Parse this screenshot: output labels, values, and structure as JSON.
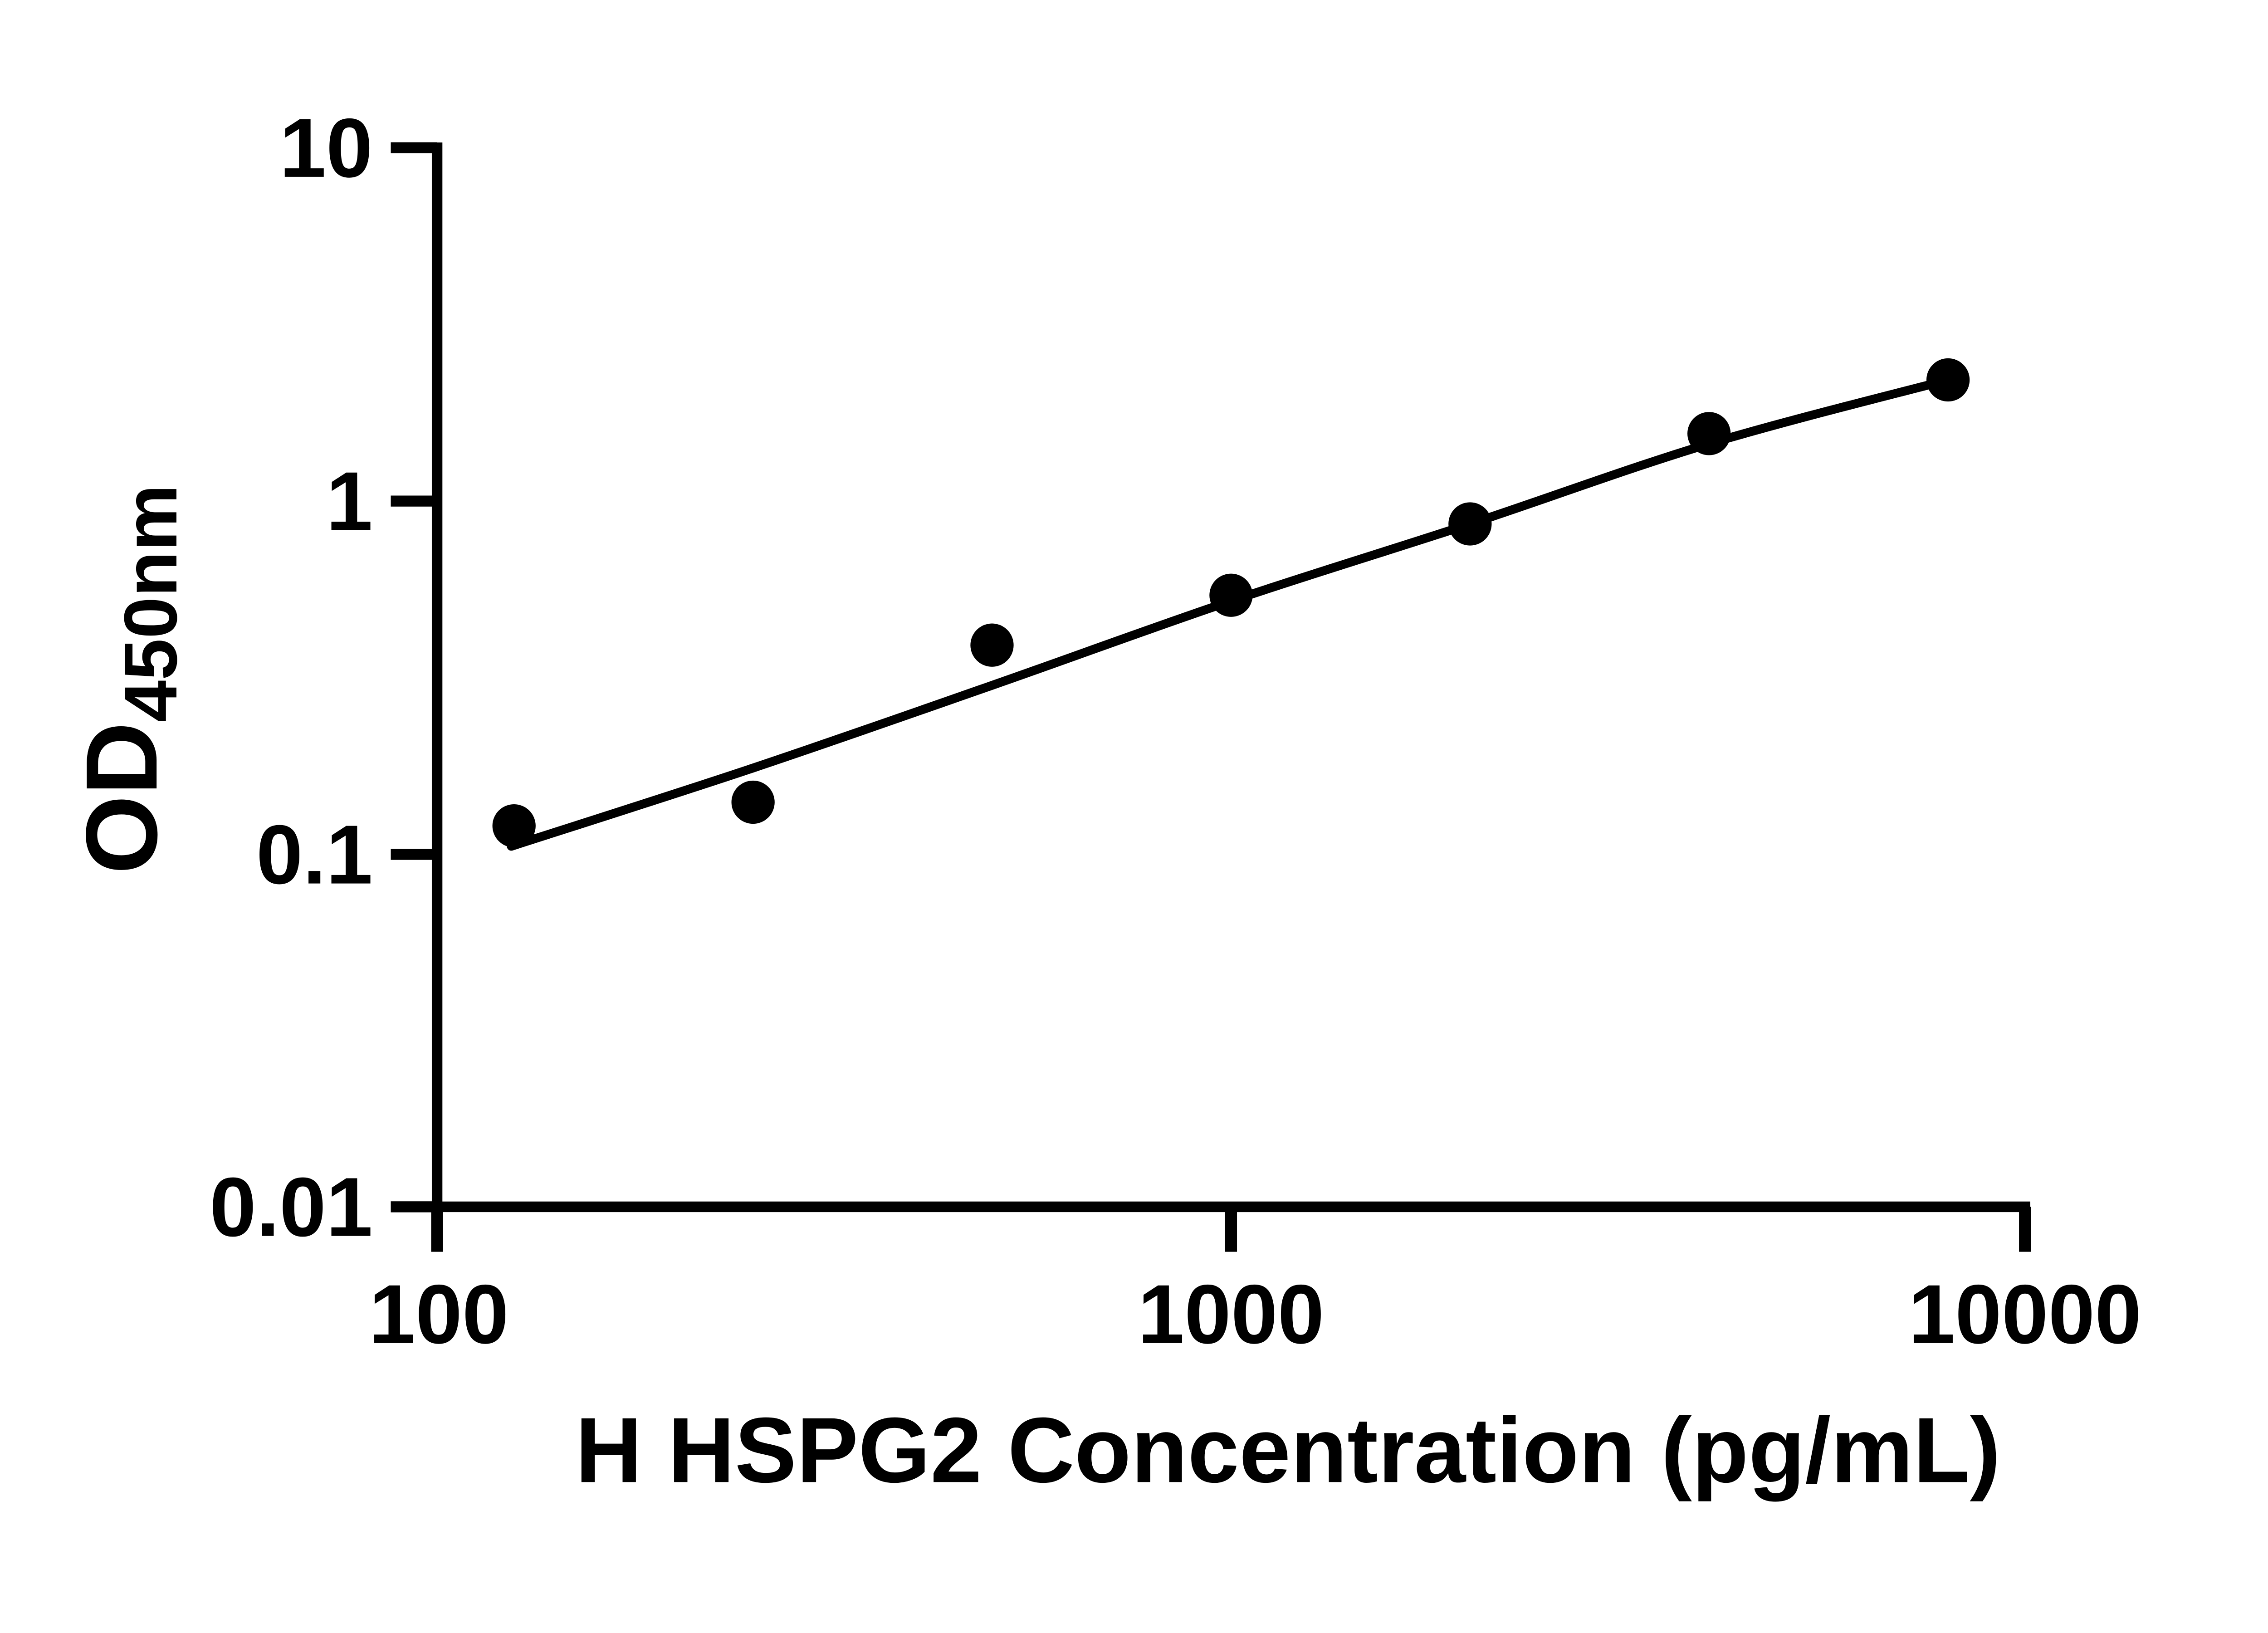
{
  "chart_data": {
    "type": "scatter",
    "subtype": "standard-curve-with-fit-line",
    "title": "",
    "xlabel": "H HSPG2 Concentration (pg/mL)",
    "ylabel": "OD450nm",
    "ylabel_main": "OD",
    "ylabel_sub": "450nm",
    "x_scale": "log10",
    "y_scale": "log10",
    "xlim": [
      100,
      10000
    ],
    "ylim": [
      0.01,
      10
    ],
    "x_ticks": [
      100,
      1000,
      10000
    ],
    "x_tick_labels": [
      "100",
      "1000",
      "10000"
    ],
    "y_ticks": [
      10,
      1,
      0.1,
      0.01
    ],
    "y_tick_labels": [
      "10",
      "1",
      "0.1",
      "0.01"
    ],
    "grid": false,
    "legend": false,
    "background_color": "#ffffff",
    "marker_color": "#000000",
    "line_color": "#000000",
    "categories": [
      125,
      250,
      500,
      1000,
      2000,
      4000,
      8000
    ],
    "series": [
      {
        "name": "OD450nm standard curve points",
        "values": [
          0.12,
          0.14,
          0.39,
          0.54,
          0.86,
          1.55,
          2.2
        ]
      }
    ],
    "points": [
      {
        "x": 125,
        "od": 0.12
      },
      {
        "x": 250,
        "od": 0.14
      },
      {
        "x": 500,
        "od": 0.39
      },
      {
        "x": 1000,
        "od": 0.54
      },
      {
        "x": 2000,
        "od": 0.86
      },
      {
        "x": 4000,
        "od": 1.55
      },
      {
        "x": 8000,
        "od": 2.2
      }
    ],
    "fit_curve": [
      {
        "x": 124,
        "od": 0.105
      },
      {
        "x": 250,
        "od": 0.175
      },
      {
        "x": 500,
        "od": 0.3
      },
      {
        "x": 1000,
        "od": 0.52
      },
      {
        "x": 2000,
        "od": 0.86
      },
      {
        "x": 4000,
        "od": 1.45
      },
      {
        "x": 8000,
        "od": 2.2
      }
    ]
  }
}
